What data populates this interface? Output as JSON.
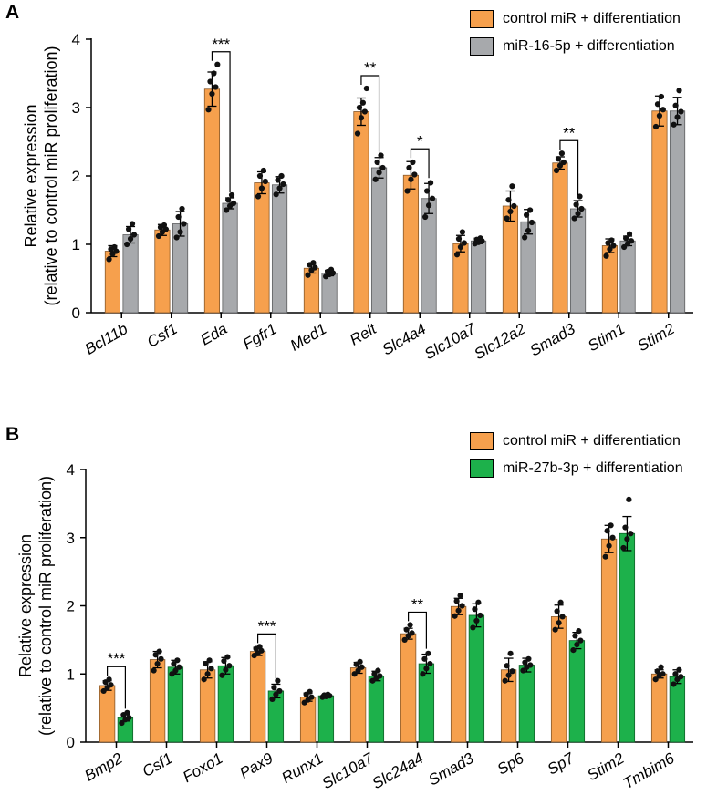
{
  "colors": {
    "control": "#F6A04D",
    "treatA": "#A7A9AC",
    "treatB": "#1DB14B"
  },
  "chart_data": [
    {
      "type": "bar",
      "panel": "A",
      "ylabel_line1": "Relative expression",
      "ylabel_line2": "(relative to control miR proliferation)",
      "ylim": [
        0,
        4
      ],
      "yticks": [
        "0",
        "1",
        "2",
        "3",
        "4"
      ],
      "categories": [
        "Bcl11b",
        "Csf1",
        "Eda",
        "Fgfr1",
        "Med1",
        "Relt",
        "Slc4a4",
        "Slc10a7",
        "Slc12a2",
        "Smad3",
        "Stim1",
        "Stim2"
      ],
      "series": [
        {
          "name": "control miR + differentiation",
          "color_key": "control",
          "values": [
            0.9,
            1.21,
            3.27,
            1.9,
            0.65,
            2.94,
            2.01,
            1.01,
            1.56,
            2.19,
            0.98,
            2.95
          ],
          "errors": [
            0.08,
            0.08,
            0.25,
            0.16,
            0.07,
            0.2,
            0.2,
            0.12,
            0.22,
            0.09,
            0.1,
            0.22
          ]
        },
        {
          "name": "miR-16-5p + differentiation",
          "color_key": "treatA",
          "values": [
            1.14,
            1.3,
            1.6,
            1.87,
            0.58,
            2.12,
            1.67,
            1.05,
            1.33,
            1.52,
            1.05,
            2.95
          ],
          "errors": [
            0.12,
            0.18,
            0.08,
            0.12,
            0.04,
            0.15,
            0.22,
            0.04,
            0.18,
            0.12,
            0.07,
            0.2
          ]
        }
      ],
      "points": {
        "series0": [
          [
            0.78,
            0.86,
            0.9,
            0.93,
            0.96
          ],
          [
            1.12,
            1.18,
            1.22,
            1.25,
            1.28
          ],
          [
            2.97,
            3.2,
            3.3,
            3.38,
            3.5,
            3.63
          ],
          [
            1.7,
            1.82,
            1.92,
            2.0,
            2.08
          ],
          [
            0.55,
            0.62,
            0.66,
            0.7,
            0.73
          ],
          [
            2.62,
            2.85,
            2.94,
            3.0,
            3.07,
            3.28
          ],
          [
            1.78,
            1.95,
            2.02,
            2.12,
            2.2
          ],
          [
            0.85,
            0.96,
            1.02,
            1.08,
            1.18
          ],
          [
            1.38,
            1.48,
            1.56,
            1.65,
            1.85
          ],
          [
            2.08,
            2.15,
            2.2,
            2.25,
            2.33
          ],
          [
            0.83,
            0.93,
            0.98,
            1.02,
            1.06
          ],
          [
            2.72,
            2.88,
            2.97,
            3.05,
            3.16
          ]
        ],
        "series1": [
          [
            1.0,
            1.08,
            1.14,
            1.22,
            1.3
          ],
          [
            1.1,
            1.18,
            1.3,
            1.4,
            1.52
          ],
          [
            1.5,
            1.56,
            1.6,
            1.65,
            1.72
          ],
          [
            1.73,
            1.82,
            1.88,
            1.94,
            2.0
          ],
          [
            0.53,
            0.56,
            0.58,
            0.6,
            0.63
          ],
          [
            1.95,
            2.05,
            2.12,
            2.2,
            2.3
          ],
          [
            1.4,
            1.57,
            1.67,
            1.78,
            1.9
          ],
          [
            1.01,
            1.03,
            1.05,
            1.07,
            1.09
          ],
          [
            1.1,
            1.2,
            1.32,
            1.43,
            1.5
          ],
          [
            1.38,
            1.45,
            1.52,
            1.58,
            1.7
          ],
          [
            0.96,
            1.01,
            1.05,
            1.09,
            1.15
          ],
          [
            2.75,
            2.86,
            2.94,
            3.03,
            3.25
          ]
        ]
      },
      "significance": [
        {
          "category_index": 2,
          "label": "***"
        },
        {
          "category_index": 5,
          "label": "**"
        },
        {
          "category_index": 6,
          "label": "*"
        },
        {
          "category_index": 9,
          "label": "**"
        }
      ]
    },
    {
      "type": "bar",
      "panel": "B",
      "ylabel_line1": "Relative expression",
      "ylabel_line2": "(relative to control miR proliferation)",
      "ylim": [
        0,
        4
      ],
      "yticks": [
        "0",
        "1",
        "2",
        "3",
        "4"
      ],
      "categories": [
        "Bmp2",
        "Csf1",
        "Foxo1",
        "Pax9",
        "Runx1",
        "Slc10a7",
        "Slc24a4",
        "Smad3",
        "Sp6",
        "Sp7",
        "Stim2",
        "Tmbim6"
      ],
      "series": [
        {
          "name": "control miR + differentiation",
          "color_key": "control",
          "values": [
            0.83,
            1.21,
            1.06,
            1.33,
            0.66,
            1.09,
            1.59,
            1.99,
            1.06,
            1.84,
            2.98,
            1.0
          ],
          "errors": [
            0.07,
            0.12,
            0.12,
            0.06,
            0.06,
            0.08,
            0.08,
            0.12,
            0.17,
            0.17,
            0.2,
            0.06
          ]
        },
        {
          "name": "miR-27b-3p + differentiation",
          "color_key": "treatB",
          "values": [
            0.36,
            1.1,
            1.12,
            0.75,
            0.68,
            0.97,
            1.15,
            1.86,
            1.13,
            1.49,
            3.06,
            0.96
          ],
          "errors": [
            0.05,
            0.1,
            0.12,
            0.1,
            0.02,
            0.07,
            0.14,
            0.17,
            0.1,
            0.12,
            0.25,
            0.1
          ]
        }
      ],
      "points": {
        "series0": [
          [
            0.75,
            0.8,
            0.84,
            0.88,
            0.92
          ],
          [
            1.05,
            1.15,
            1.22,
            1.28,
            1.33
          ],
          [
            0.92,
            1.0,
            1.08,
            1.15,
            1.2
          ],
          [
            1.27,
            1.3,
            1.34,
            1.37,
            1.4
          ],
          [
            0.58,
            0.62,
            0.66,
            0.7,
            0.74
          ],
          [
            1.0,
            1.05,
            1.1,
            1.14,
            1.18
          ],
          [
            1.5,
            1.56,
            1.6,
            1.65,
            1.72
          ],
          [
            1.85,
            1.93,
            2.0,
            2.07,
            2.15
          ],
          [
            0.9,
            0.98,
            1.04,
            1.12,
            1.3
          ],
          [
            1.65,
            1.75,
            1.84,
            1.92,
            2.05
          ],
          [
            2.72,
            2.88,
            3.0,
            3.1,
            3.18
          ],
          [
            0.92,
            0.97,
            1.0,
            1.04,
            1.1
          ]
        ],
        "series1": [
          [
            0.28,
            0.33,
            0.36,
            0.4,
            0.43
          ],
          [
            1.0,
            1.05,
            1.1,
            1.15,
            1.2
          ],
          [
            0.98,
            1.06,
            1.12,
            1.19,
            1.25
          ],
          [
            0.63,
            0.7,
            0.75,
            0.8,
            0.9
          ],
          [
            0.66,
            0.67,
            0.68,
            0.69,
            0.7
          ],
          [
            0.9,
            0.94,
            0.97,
            1.0,
            1.05
          ],
          [
            1.0,
            1.08,
            1.15,
            1.22,
            1.3
          ],
          [
            1.68,
            1.78,
            1.86,
            1.95,
            2.05
          ],
          [
            1.05,
            1.1,
            1.13,
            1.17,
            1.22
          ],
          [
            1.35,
            1.43,
            1.49,
            1.56,
            1.63
          ],
          [
            2.85,
            2.98,
            3.06,
            3.15,
            3.56
          ],
          [
            0.85,
            0.92,
            0.96,
            1.0,
            1.06
          ]
        ]
      },
      "significance": [
        {
          "category_index": 0,
          "label": "***"
        },
        {
          "category_index": 3,
          "label": "***"
        },
        {
          "category_index": 6,
          "label": "**"
        }
      ]
    }
  ]
}
